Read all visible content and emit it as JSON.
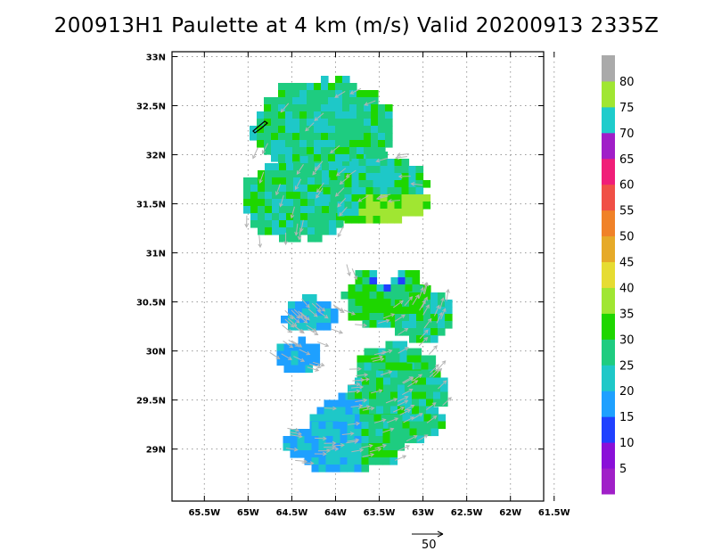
{
  "title": "200913H1 Paulette at 4 km (m/s) Valid 20200913 2335Z",
  "chart_data": {
    "type": "heatmap",
    "title": "200913H1 Paulette at 4 km (m/s) Valid 20200913 2335Z",
    "xlabel": "",
    "ylabel": "",
    "x_ticks": [
      {
        "value": -65.5,
        "label": "65.5W"
      },
      {
        "value": -65.0,
        "label": "65W"
      },
      {
        "value": -64.5,
        "label": "64.5W"
      },
      {
        "value": -64.0,
        "label": "64W"
      },
      {
        "value": -63.5,
        "label": "63.5W"
      },
      {
        "value": -63.0,
        "label": "63W"
      },
      {
        "value": -62.5,
        "label": "62.5W"
      },
      {
        "value": -62.0,
        "label": "62W"
      },
      {
        "value": -61.5,
        "label": "61.5W"
      }
    ],
    "y_ticks": [
      {
        "value": 29.0,
        "label": "29N"
      },
      {
        "value": 29.5,
        "label": "29.5N"
      },
      {
        "value": 30.0,
        "label": "30N"
      },
      {
        "value": 30.5,
        "label": "30.5N"
      },
      {
        "value": 31.0,
        "label": "31N"
      },
      {
        "value": 31.5,
        "label": "31.5N"
      },
      {
        "value": 32.0,
        "label": "32N"
      },
      {
        "value": 32.5,
        "label": "32.5N"
      },
      {
        "value": 33.0,
        "label": "33N"
      }
    ],
    "xlim": [
      -65.87,
      -61.62
    ],
    "ylim": [
      28.47,
      33.05
    ],
    "grid": true,
    "center": {
      "lon": -63.47,
      "lat": 30.86
    },
    "colorbar": {
      "labels": [
        "5",
        "10",
        "15",
        "20",
        "25",
        "30",
        "35",
        "40",
        "45",
        "50",
        "55",
        "60",
        "65",
        "70",
        "75",
        "80"
      ],
      "colors": [
        "#a020c8",
        "#8a10d8",
        "#2040ff",
        "#1ea0ff",
        "#1ec8c8",
        "#1ecc80",
        "#1ed600",
        "#a0e632",
        "#e6dc32",
        "#e6aa28",
        "#f08228",
        "#f05046",
        "#f01e78",
        "#a01ec8",
        "#1ecccc",
        "#a0e632",
        "#aaaaaa"
      ]
    },
    "reference_vector": {
      "label": "50",
      "value": 50
    }
  }
}
